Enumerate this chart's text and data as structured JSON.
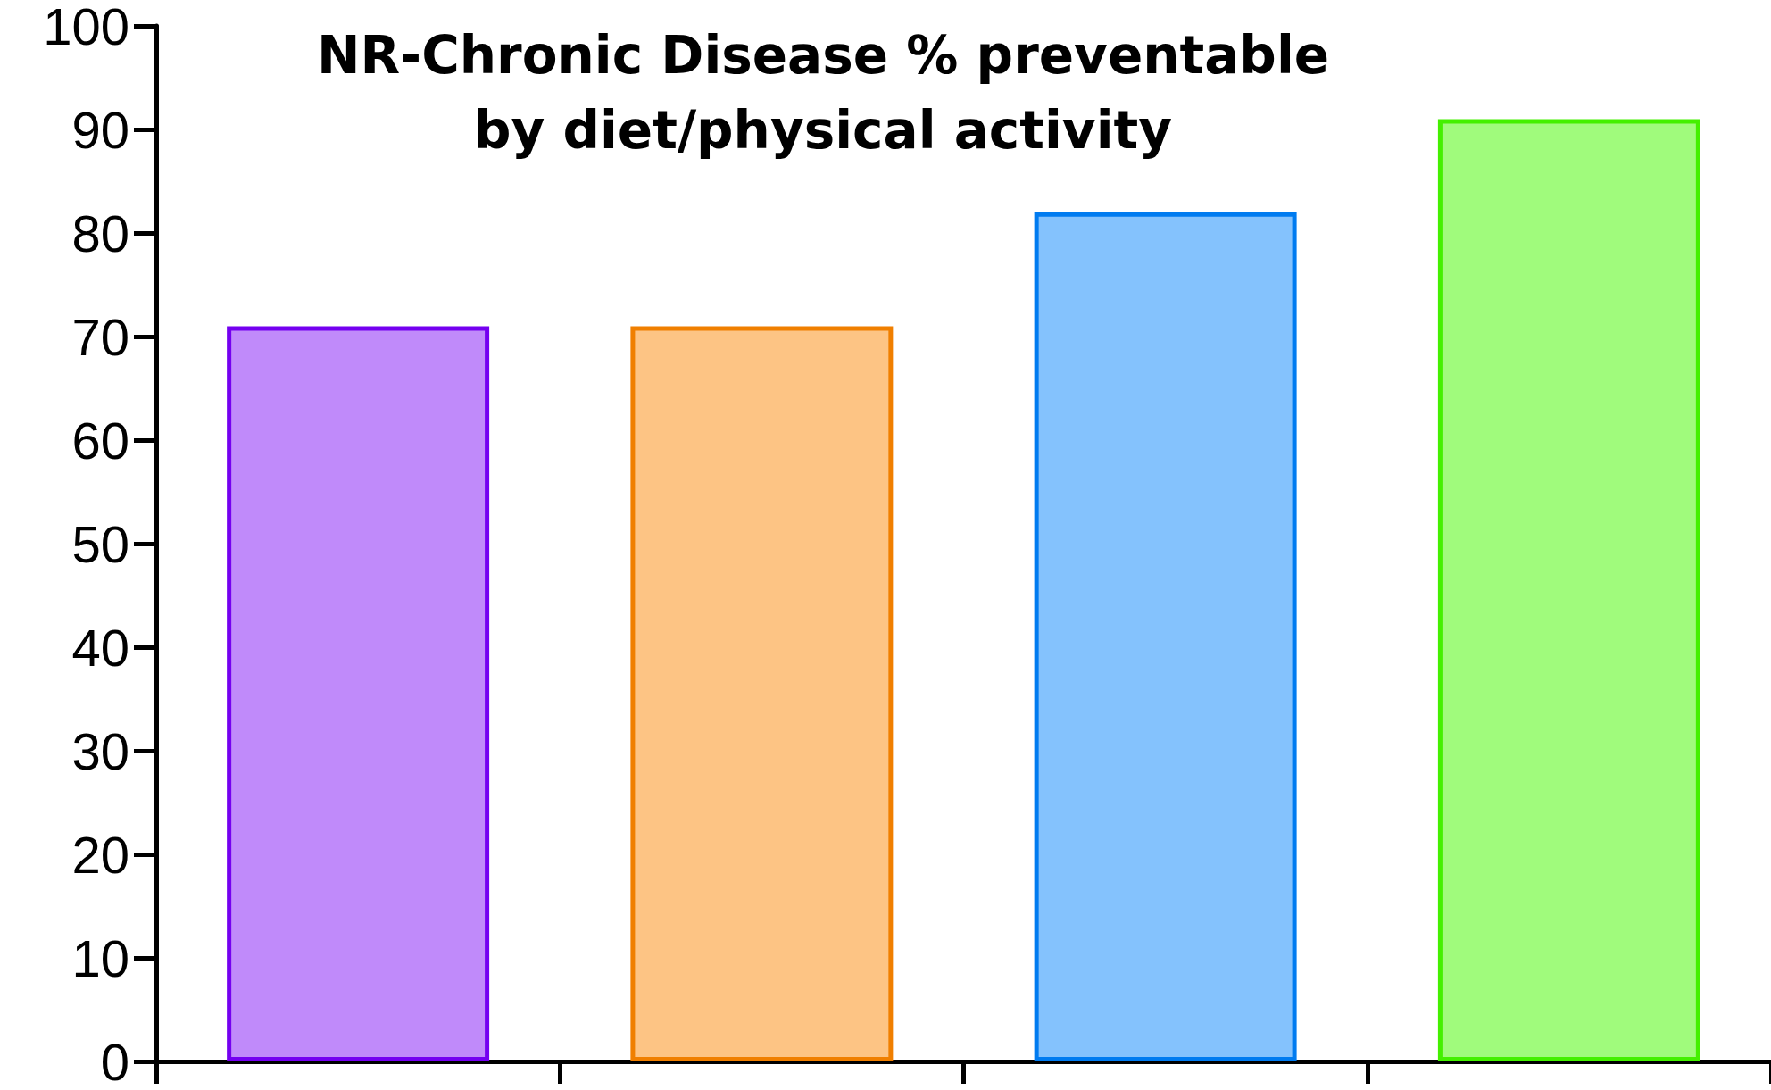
{
  "chart_data": {
    "type": "bar",
    "title": "NR-Chronic Disease % preventable\nby diet/physical activity",
    "categories": [
      null,
      null,
      null,
      null
    ],
    "values": [
      71,
      71,
      82,
      91
    ],
    "colors": [
      "#c08afa",
      "#fdc484",
      "#84c2fd",
      "#a0fb7c"
    ],
    "ylim": [
      0,
      100
    ],
    "yticks": [
      0,
      10,
      20,
      30,
      40,
      50,
      60,
      70,
      80,
      90,
      100
    ],
    "grid": false
  }
}
